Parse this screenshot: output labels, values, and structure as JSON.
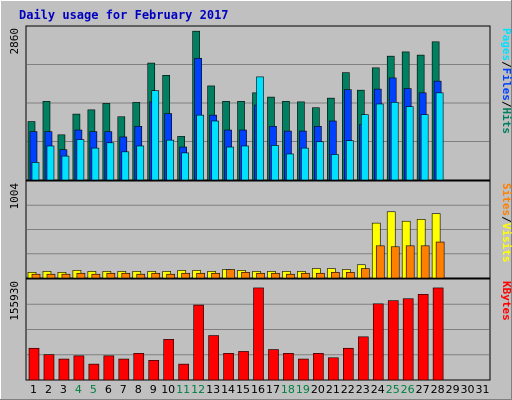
{
  "title": "Daily usage for February 2017",
  "colors": {
    "background": "#c0c0c0",
    "panel": "#c0c0c0",
    "grid": "#808080",
    "title": "#0000c0",
    "hits": "#008060",
    "files": "#0040ff",
    "pages": "#00e0ff",
    "visits": "#ffff00",
    "sites": "#ff8000",
    "kbytes": "#ff0000",
    "weekend_label": "#008040",
    "weekday_label": "#000000",
    "separator": "#000000"
  },
  "chart_data": [
    {
      "type": "bar",
      "name": "pages-files-hits",
      "ymax_label": "2860",
      "ymax": 2860,
      "legend": [
        "Pages",
        "/",
        "Files",
        "/",
        "Hits"
      ],
      "categories": [
        "1",
        "2",
        "3",
        "4",
        "5",
        "6",
        "7",
        "8",
        "9",
        "10",
        "11",
        "12",
        "13",
        "14",
        "15",
        "16",
        "17",
        "18",
        "19",
        "20",
        "21",
        "22",
        "23",
        "24",
        "25",
        "26",
        "27",
        "28"
      ],
      "series": [
        {
          "name": "Hits",
          "values": [
            1100,
            1480,
            850,
            1240,
            1320,
            1440,
            1190,
            1460,
            2200,
            1970,
            820,
            2800,
            1770,
            1480,
            1480,
            1640,
            1560,
            1480,
            1470,
            1360,
            1540,
            2020,
            1690,
            2110,
            2330,
            2410,
            2350,
            2600
          ]
        },
        {
          "name": "Files",
          "values": [
            910,
            910,
            570,
            940,
            910,
            910,
            810,
            1010,
            1470,
            1250,
            620,
            2290,
            1220,
            940,
            940,
            1410,
            1010,
            920,
            920,
            1010,
            1110,
            1700,
            1040,
            1710,
            1920,
            1720,
            1640,
            1860
          ]
        },
        {
          "name": "Pages",
          "values": [
            330,
            640,
            450,
            760,
            600,
            700,
            530,
            640,
            1680,
            750,
            510,
            1220,
            1110,
            620,
            640,
            1940,
            650,
            490,
            600,
            720,
            480,
            740,
            1230,
            1430,
            1460,
            1380,
            1230,
            1640
          ]
        }
      ]
    },
    {
      "type": "bar",
      "name": "sites-visits",
      "ymax_label": "1004",
      "ymax": 1004,
      "legend": [
        "Sites",
        "/",
        "Visits"
      ],
      "series": [
        {
          "name": "Visits",
          "values": [
            60,
            70,
            60,
            80,
            70,
            70,
            70,
            70,
            70,
            70,
            80,
            80,
            70,
            90,
            80,
            70,
            70,
            70,
            70,
            100,
            100,
            90,
            140,
            580,
            700,
            600,
            620,
            680
          ]
        },
        {
          "name": "Sites",
          "values": [
            40,
            40,
            40,
            50,
            40,
            50,
            50,
            40,
            50,
            40,
            50,
            50,
            50,
            90,
            60,
            50,
            50,
            40,
            50,
            50,
            60,
            60,
            100,
            340,
            330,
            340,
            340,
            380
          ]
        }
      ]
    },
    {
      "type": "bar",
      "name": "kbytes",
      "ymax_label": "155930",
      "ymax": 155930,
      "legend": [
        "KBytes"
      ],
      "series": [
        {
          "name": "KBytes",
          "values": [
            50000,
            40000,
            33000,
            38000,
            25000,
            38000,
            33000,
            42000,
            31000,
            64000,
            25000,
            118000,
            70000,
            42000,
            45000,
            145000,
            48000,
            42000,
            33000,
            42000,
            35000,
            50000,
            68000,
            120000,
            125000,
            128000,
            135000,
            145000
          ]
        }
      ]
    }
  ],
  "x_labels": [
    {
      "text": "1",
      "weekend": false
    },
    {
      "text": "2",
      "weekend": false
    },
    {
      "text": "3",
      "weekend": false
    },
    {
      "text": "4",
      "weekend": true
    },
    {
      "text": "5",
      "weekend": true
    },
    {
      "text": "6",
      "weekend": false
    },
    {
      "text": "7",
      "weekend": false
    },
    {
      "text": "8",
      "weekend": false
    },
    {
      "text": "9",
      "weekend": false
    },
    {
      "text": "10",
      "weekend": false
    },
    {
      "text": "11",
      "weekend": true
    },
    {
      "text": "12",
      "weekend": true
    },
    {
      "text": "13",
      "weekend": false
    },
    {
      "text": "14",
      "weekend": false
    },
    {
      "text": "15",
      "weekend": false
    },
    {
      "text": "16",
      "weekend": false
    },
    {
      "text": "17",
      "weekend": false
    },
    {
      "text": "18",
      "weekend": true
    },
    {
      "text": "19",
      "weekend": true
    },
    {
      "text": "20",
      "weekend": false
    },
    {
      "text": "21",
      "weekend": false
    },
    {
      "text": "22",
      "weekend": false
    },
    {
      "text": "23",
      "weekend": false
    },
    {
      "text": "24",
      "weekend": false
    },
    {
      "text": "25",
      "weekend": true
    },
    {
      "text": "26",
      "weekend": true
    },
    {
      "text": "27",
      "weekend": false
    },
    {
      "text": "28",
      "weekend": false
    },
    {
      "text": "29",
      "weekend": false
    },
    {
      "text": "30",
      "weekend": false
    },
    {
      "text": "31",
      "weekend": false
    }
  ]
}
